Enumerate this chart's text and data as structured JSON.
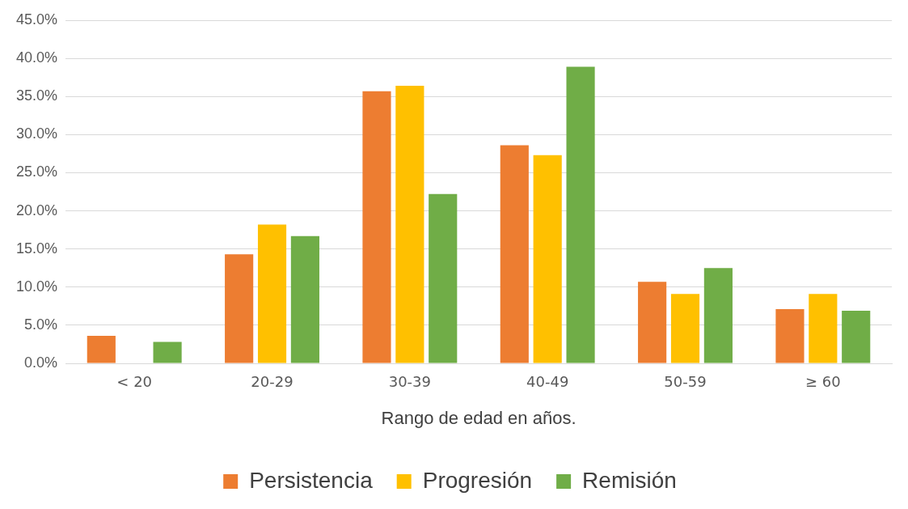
{
  "chart_data": {
    "type": "bar",
    "xlabel": "Rango de edad en años.",
    "categories": [
      "< 20",
      "20-29",
      "30-39",
      "40-49",
      "50-59",
      "≥ 60"
    ],
    "series": [
      {
        "name": "Persistencia",
        "color": "#ed7d31",
        "values": [
          3.6,
          14.3,
          35.7,
          28.6,
          10.7,
          7.1
        ]
      },
      {
        "name": "Progresión",
        "color": "#ffc000",
        "values": [
          0,
          18.2,
          36.4,
          27.3,
          9.1,
          9.1
        ]
      },
      {
        "name": "Remisión",
        "color": "#70ad47",
        "values": [
          2.8,
          16.7,
          22.2,
          38.9,
          12.5,
          6.9
        ]
      }
    ],
    "ylim": [
      0,
      45
    ],
    "yticks": [
      {
        "value": 0,
        "label": "0.0%"
      },
      {
        "value": 5,
        "label": "5.0%"
      },
      {
        "value": 10,
        "label": "10.0%"
      },
      {
        "value": 15,
        "label": "15.0%"
      },
      {
        "value": 20,
        "label": "20.0%"
      },
      {
        "value": 25,
        "label": "25.0%"
      },
      {
        "value": 30,
        "label": "30.0%"
      },
      {
        "value": 35,
        "label": "35.0%"
      },
      {
        "value": 40,
        "label": "40.0%"
      },
      {
        "value": 45,
        "label": "45.0%"
      }
    ],
    "grid": "y",
    "legend": "bottom"
  }
}
